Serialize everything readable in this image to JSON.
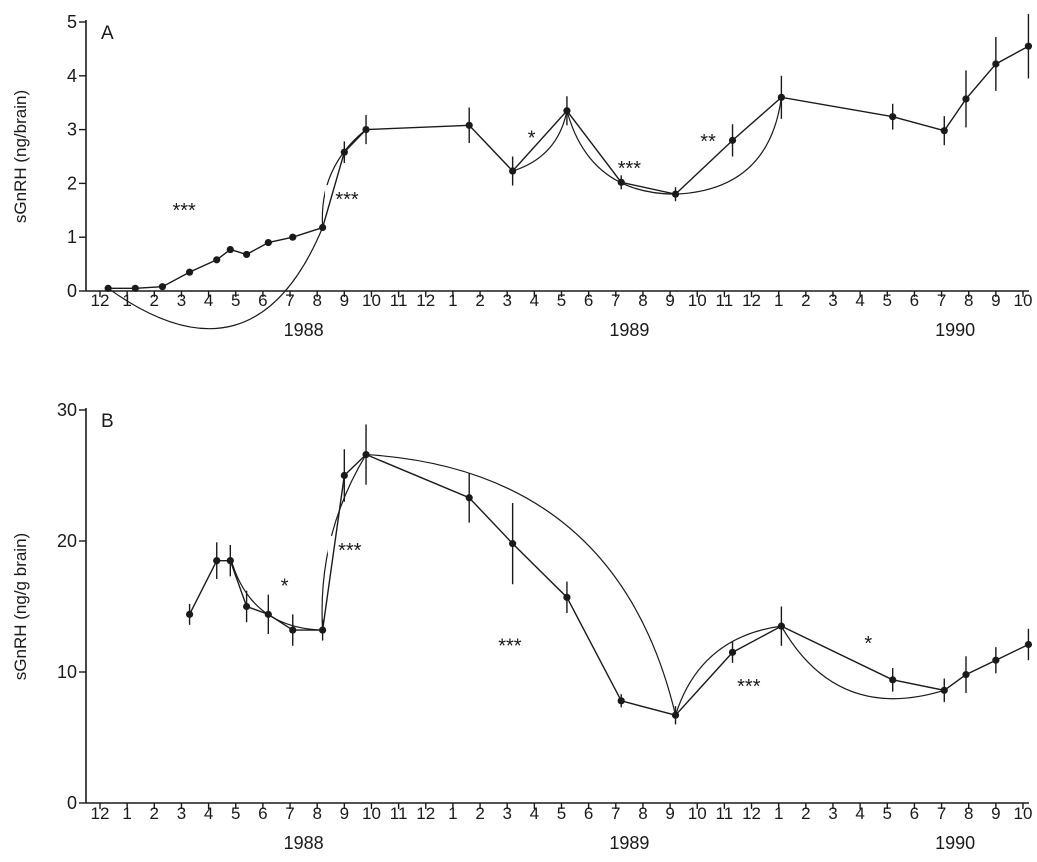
{
  "chart_data": [
    {
      "type": "line",
      "panel": "A",
      "ylabel": "sGnRH (ng/brain)",
      "ylim": [
        0,
        5
      ],
      "yticks": [
        0,
        1,
        2,
        3,
        4,
        5
      ],
      "x_tick_labels": [
        "12",
        "1",
        "2",
        "3",
        "4",
        "5",
        "6",
        "7",
        "8",
        "9",
        "10",
        "11",
        "12",
        "1",
        "2",
        "3",
        "4",
        "5",
        "6",
        "7",
        "8",
        "9",
        "10",
        "11",
        "12",
        "1",
        "2",
        "3",
        "4",
        "5",
        "6",
        "7",
        "8",
        "9",
        "10"
      ],
      "year_labels": [
        {
          "label": "1988",
          "at_month": 7.5
        },
        {
          "label": "1989",
          "at_month": 19.5
        },
        {
          "label": "1990",
          "at_month": 31.5
        }
      ],
      "x_note": "x values are months elapsed since December 1987",
      "points": [
        {
          "x": 0.3,
          "y": 0.05,
          "err": 0
        },
        {
          "x": 1.3,
          "y": 0.05,
          "err": 0
        },
        {
          "x": 2.3,
          "y": 0.08,
          "err": 0
        },
        {
          "x": 3.3,
          "y": 0.35,
          "err": 0
        },
        {
          "x": 4.3,
          "y": 0.58,
          "err": 0
        },
        {
          "x": 4.8,
          "y": 0.77,
          "err": 0
        },
        {
          "x": 5.4,
          "y": 0.68,
          "err": 0
        },
        {
          "x": 6.2,
          "y": 0.9,
          "err": 0
        },
        {
          "x": 7.1,
          "y": 1.0,
          "err": 0
        },
        {
          "x": 8.2,
          "y": 1.18,
          "err": 0
        },
        {
          "x": 9.0,
          "y": 2.58,
          "err": 0.2
        },
        {
          "x": 9.8,
          "y": 3.0,
          "err": 0.27
        },
        {
          "x": 13.6,
          "y": 3.08,
          "err": 0.33
        },
        {
          "x": 15.2,
          "y": 2.23,
          "err": 0.27
        },
        {
          "x": 17.2,
          "y": 3.35,
          "err": 0.27
        },
        {
          "x": 19.2,
          "y": 2.02,
          "err": 0.13
        },
        {
          "x": 21.2,
          "y": 1.8,
          "err": 0.13
        },
        {
          "x": 23.3,
          "y": 2.8,
          "err": 0.3
        },
        {
          "x": 25.1,
          "y": 3.6,
          "err": 0.4
        },
        {
          "x": 29.2,
          "y": 3.24,
          "err": 0.24
        },
        {
          "x": 31.1,
          "y": 2.98,
          "err": 0.27
        },
        {
          "x": 31.9,
          "y": 3.57,
          "err": 0.53
        },
        {
          "x": 33.0,
          "y": 4.22,
          "err": 0.5
        },
        {
          "x": 34.2,
          "y": 4.55,
          "err": 0.6
        }
      ],
      "annotations": [
        {
          "text": "***",
          "from_x": 0.3,
          "from_y": 0.05,
          "to_x": 8.2,
          "to_y": 1.18,
          "label_x": 3.1,
          "label_y": 1.6,
          "bend": -70
        },
        {
          "text": "***",
          "from_x": 8.2,
          "from_y": 1.18,
          "to_x": 9.8,
          "to_y": 3.0,
          "label_x": 9.1,
          "label_y": 1.8,
          "bend": 14
        },
        {
          "text": "*",
          "from_x": 15.2,
          "from_y": 2.23,
          "to_x": 17.2,
          "to_y": 3.35,
          "label_x": 15.9,
          "label_y": 2.95,
          "bend": -12
        },
        {
          "text": "***",
          "from_x": 17.2,
          "from_y": 3.35,
          "to_x": 21.2,
          "to_y": 1.8,
          "label_x": 19.5,
          "label_y": 2.38,
          "bend": -26
        },
        {
          "text": "**",
          "from_x": 21.2,
          "from_y": 1.8,
          "to_x": 25.1,
          "to_y": 3.6,
          "label_x": 22.4,
          "label_y": 2.88,
          "bend": -30
        }
      ]
    },
    {
      "type": "line",
      "panel": "B",
      "ylabel": "sGnRH (ng/g brain)",
      "ylim": [
        0,
        30
      ],
      "yticks": [
        0,
        10,
        20,
        30
      ],
      "x_tick_labels": [
        "12",
        "1",
        "2",
        "3",
        "4",
        "5",
        "6",
        "7",
        "8",
        "9",
        "10",
        "11",
        "12",
        "1",
        "2",
        "3",
        "4",
        "5",
        "6",
        "7",
        "8",
        "9",
        "10",
        "11",
        "12",
        "1",
        "2",
        "3",
        "4",
        "5",
        "6",
        "7",
        "8",
        "9",
        "10"
      ],
      "year_labels": [
        {
          "label": "1988",
          "at_month": 7.5
        },
        {
          "label": "1989",
          "at_month": 19.5
        },
        {
          "label": "1990",
          "at_month": 31.5
        }
      ],
      "x_note": "x values are months elapsed since December 1987",
      "points": [
        {
          "x": 3.3,
          "y": 14.4,
          "err": 0.8
        },
        {
          "x": 4.3,
          "y": 18.5,
          "err": 1.4
        },
        {
          "x": 4.8,
          "y": 18.5,
          "err": 1.2
        },
        {
          "x": 5.4,
          "y": 15.0,
          "err": 1.2
        },
        {
          "x": 6.2,
          "y": 14.4,
          "err": 1.5
        },
        {
          "x": 7.1,
          "y": 13.2,
          "err": 1.2
        },
        {
          "x": 8.2,
          "y": 13.2,
          "err": 0.8
        },
        {
          "x": 9.0,
          "y": 25.0,
          "err": 2.0
        },
        {
          "x": 9.8,
          "y": 26.6,
          "err": 2.3
        },
        {
          "x": 13.6,
          "y": 23.3,
          "err": 1.9
        },
        {
          "x": 15.2,
          "y": 19.8,
          "err": 3.1
        },
        {
          "x": 17.2,
          "y": 15.7,
          "err": 1.2
        },
        {
          "x": 19.2,
          "y": 7.8,
          "err": 0.5
        },
        {
          "x": 21.2,
          "y": 6.7,
          "err": 0.7
        },
        {
          "x": 23.3,
          "y": 11.5,
          "err": 0.8
        },
        {
          "x": 25.1,
          "y": 13.5,
          "err": 1.5
        },
        {
          "x": 29.2,
          "y": 9.4,
          "err": 0.9
        },
        {
          "x": 31.1,
          "y": 8.6,
          "err": 0.9
        },
        {
          "x": 31.9,
          "y": 9.8,
          "err": 1.4
        },
        {
          "x": 33.0,
          "y": 10.9,
          "err": 1.0
        },
        {
          "x": 34.2,
          "y": 12.1,
          "err": 1.2
        }
      ],
      "annotations": [
        {
          "text": "*",
          "from_x": 4.8,
          "from_y": 18.8,
          "to_x": 8.2,
          "to_y": 13.2,
          "label_x": 6.8,
          "label_y": 17.0,
          "bend": -22
        },
        {
          "text": "***",
          "from_x": 8.2,
          "from_y": 13.2,
          "to_x": 9.8,
          "to_y": 26.6,
          "label_x": 9.2,
          "label_y": 19.7,
          "bend": 14
        },
        {
          "text": "***",
          "from_x": 9.8,
          "from_y": 26.6,
          "to_x": 21.2,
          "to_y": 6.7,
          "label_x": 15.1,
          "label_y": 12.4,
          "bend": 75
        },
        {
          "text": "***",
          "from_x": 21.2,
          "from_y": 6.7,
          "to_x": 25.1,
          "to_y": 13.5,
          "label_x": 23.9,
          "label_y": 9.3,
          "bend": 22
        },
        {
          "text": "*",
          "from_x": 25.1,
          "from_y": 13.5,
          "to_x": 31.1,
          "to_y": 8.6,
          "label_x": 28.3,
          "label_y": 12.6,
          "bend": -35
        }
      ]
    }
  ]
}
